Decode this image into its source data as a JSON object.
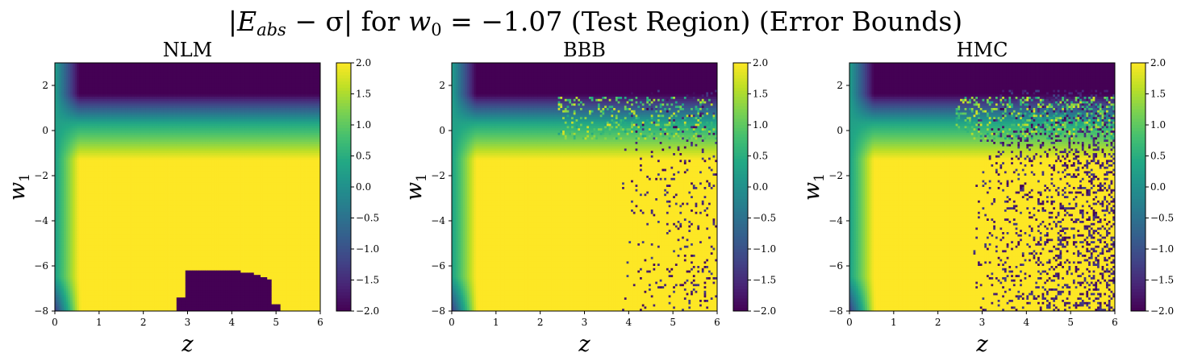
{
  "suptitle": "|E_abs − σ| for w_0 = −1.07 (Test Region) (Error Bounds)",
  "suptitle_parts": {
    "lhs": "|E",
    "lhs_sub": "abs",
    "minus_sigma": " − σ|",
    "for": " for ",
    "w": "w",
    "w_sub": "0",
    "eq": " = −1.07 (Test Region) (Error Bounds)"
  },
  "chart_data": [
    {
      "type": "heatmap",
      "title": "NLM",
      "xlabel": "z",
      "ylabel": "w_1",
      "xlim": [
        0,
        6
      ],
      "ylim": [
        -8,
        3
      ],
      "xticks": [
        "0",
        "1",
        "2",
        "3",
        "4",
        "5",
        "6"
      ],
      "yticks": [
        "2",
        "0",
        "−2",
        "−4",
        "−6",
        "−8"
      ],
      "colorbar": {
        "min": -2.0,
        "max": 2.0,
        "ticks": [
          "2.0",
          "1.5",
          "1.0",
          "0.5",
          "0.0",
          "−0.5",
          "−1.0",
          "−1.5",
          "−2.0"
        ]
      },
      "colormap": "viridis",
      "noise_level": 0.0,
      "noise_onset_z": 6.0,
      "has_low_region": true,
      "grid": false
    },
    {
      "type": "heatmap",
      "title": "BBB",
      "xlabel": "z",
      "ylabel": "w_1",
      "xlim": [
        0,
        6
      ],
      "ylim": [
        -8,
        3
      ],
      "xticks": [
        "0",
        "1",
        "2",
        "3",
        "4",
        "5",
        "6"
      ],
      "yticks": [
        "2",
        "0",
        "−2",
        "−4",
        "−6",
        "−8"
      ],
      "colorbar": {
        "min": -2.0,
        "max": 2.0,
        "ticks": [
          "2.0",
          "1.5",
          "1.0",
          "0.5",
          "0.0",
          "−0.5",
          "−1.0",
          "−1.5",
          "−2.0"
        ]
      },
      "colormap": "viridis",
      "noise_level": 0.12,
      "noise_onset_z": 3.8,
      "has_low_region": false,
      "grid": false
    },
    {
      "type": "heatmap",
      "title": "HMC",
      "xlabel": "z",
      "ylabel": "w_1",
      "xlim": [
        0,
        6
      ],
      "ylim": [
        -8,
        3
      ],
      "xticks": [
        "0",
        "1",
        "2",
        "3",
        "4",
        "5",
        "6"
      ],
      "yticks": [
        "2",
        "0",
        "−2",
        "−4",
        "−6",
        "−8"
      ],
      "colorbar": {
        "min": -2.0,
        "max": 2.0,
        "ticks": [
          "2.0",
          "1.5",
          "1.0",
          "0.5",
          "0.0",
          "−0.5",
          "−1.0",
          "−1.5",
          "−2.0"
        ]
      },
      "colormap": "viridis",
      "noise_level": 0.32,
      "noise_onset_z": 2.8,
      "has_low_region": false,
      "grid": false
    }
  ]
}
